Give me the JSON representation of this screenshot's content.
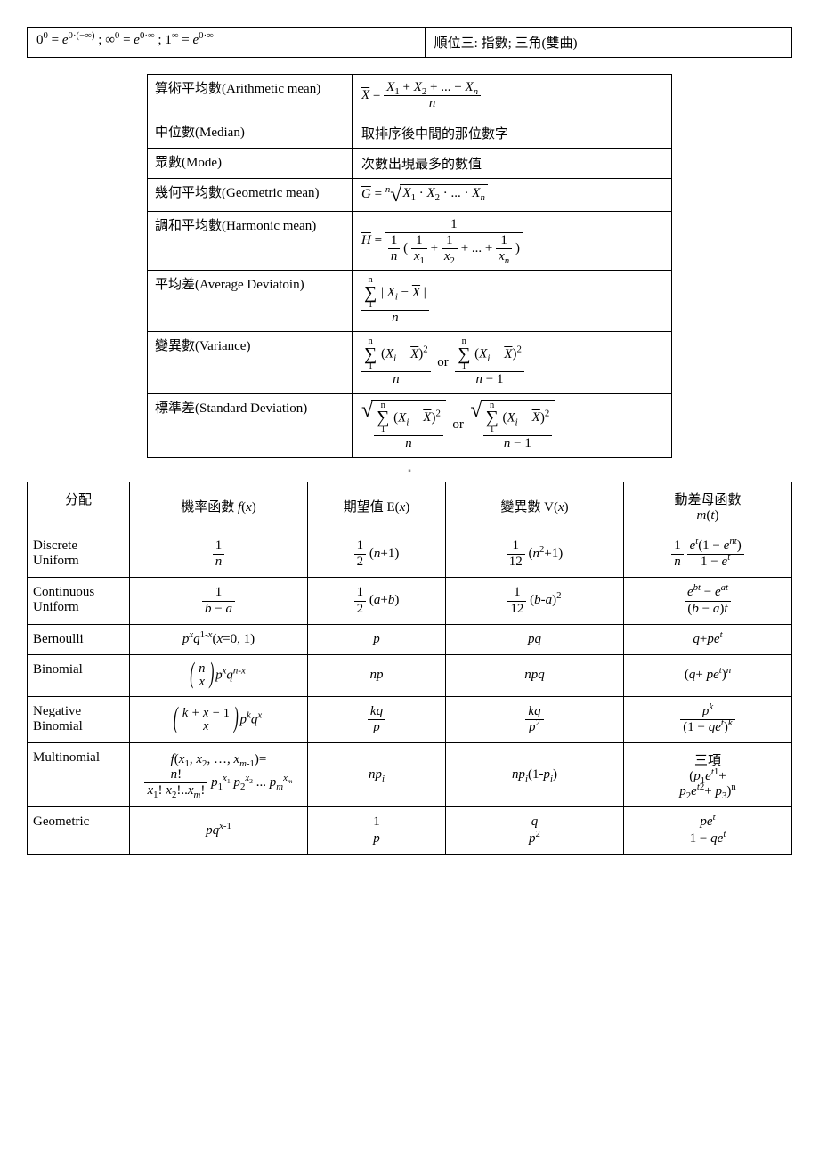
{
  "topRow": {
    "leftHtml": "0<sup>0</sup> = <span class='it'>e</span><sup>0·(−∞)</sup> ; ∞<sup>0</sup> = <span class='it'>e</span><sup>0·∞</sup> ; 1<sup>∞</sup> = <span class='it'>e</span><sup>0·∞</sup>",
    "right": "順位三: 指數; 三角(雙曲)"
  },
  "statRows": [
    {
      "label": "算術平均數(Arithmetic mean)",
      "formulaHtml": "<span class='ol it'>X</span> = <span class='frac'><span class='num'><span class='it'>X</span><sub>1</sub> + <span class='it'>X</span><sub>2</sub> + ... + <span class='it'>X</span><sub><span class='it'>n</span></sub></span><span class='den it'>n</span></span>"
    },
    {
      "label": "中位數(Median)",
      "formulaHtml": "取排序後中間的那位數字"
    },
    {
      "label": "眾數(Mode)",
      "formulaHtml": "次數出現最多的數值"
    },
    {
      "label": "幾何平均數(Geometric mean)",
      "formulaHtml": "<span class='ol it'>G</span> = <sup><span class='it'>n</span></sup><span class='sqrt'><span class='rad'>√</span><span class='body'><span class='it'>X</span><sub>1</sub> · <span class='it'>X</span><sub>2</sub> · ... · <span class='it'>X</span><sub><span class='it'>n</span></sub></span></span>"
    },
    {
      "label": "調和平均數(Harmonic mean)",
      "formulaHtml": "<span class='ol it'>H</span> = <span class='frac'><span class='num'>1</span><span class='den'><span class='frac'><span class='num'>1</span><span class='den it'>n</span></span> ( <span class='frac'><span class='num'>1</span><span class='den'><span class='it'>x</span><sub>1</sub></span></span> + <span class='frac'><span class='num'>1</span><span class='den'><span class='it'>x</span><sub>2</sub></span></span> + ... + <span class='frac'><span class='num'>1</span><span class='den'><span class='it'>x</span><sub><span class='it'>n</span></sub></span></span> )</span></span>"
    },
    {
      "label": "平均差(Average Deviatoin)",
      "formulaHtml": "<span class='frac'><span class='num'><span class='sum'><span>n</span><span class='sig'>∑</span><span>1</span></span> | <span class='it'>X</span><sub><span class='it'>i</span></sub> − <span class='ol it'>X</span> |</span><span class='den it'>n</span></span>"
    },
    {
      "label": "變異數(Variance)",
      "formulaHtml": "<span class='frac'><span class='num'><span class='sum'><span>n</span><span class='sig'>∑</span><span>1</span></span> (<span class='it'>X</span><sub><span class='it'>i</span></sub> − <span class='ol it'>X</span>)<sup>2</sup></span><span class='den it'>n</span></span> &nbsp;or&nbsp; <span class='frac'><span class='num'><span class='sum'><span>n</span><span class='sig'>∑</span><span>1</span></span> (<span class='it'>X</span><sub><span class='it'>i</span></sub> − <span class='ol it'>X</span>)<sup>2</sup></span><span class='den'><span class='it'>n</span> − 1</span></span>"
    },
    {
      "label": "標準差(Standard Deviation)",
      "formulaHtml": "<span class='sqrt'><span class='rad'>√</span><span class='body'><span class='frac'><span class='num'><span class='sum'><span>n</span><span class='sig'>∑</span><span>1</span></span> (<span class='it'>X</span><sub><span class='it'>i</span></sub> − <span class='ol it'>X</span>)<sup>2</sup></span><span class='den it'>n</span></span></span></span> &nbsp;or&nbsp; <span class='sqrt'><span class='rad'>√</span><span class='body'><span class='frac'><span class='num'><span class='sum'><span>n</span><span class='sig'>∑</span><span>1</span></span> (<span class='it'>X</span><sub><span class='it'>i</span></sub> − <span class='ol it'>X</span>)<sup>2</sup></span><span class='den'><span class='it'>n</span> − 1</span></span></span></span>"
    }
  ],
  "midMarker": "▪",
  "distHeader": {
    "c1": "分配",
    "c2Html": "機率函數 <span class='it'>f</span>(<span class='it'>x</span>)",
    "c3Html": "期望值 E(<span class='it'>x</span>)",
    "c4Html": "變異數 V(<span class='it'>x</span>)",
    "c5Html": "動差母函數<br><span class='it'>m</span>(<span class='it'>t</span>)"
  },
  "distRows": [
    {
      "name": "Discrete<br>Uniform",
      "fx": "<span class='frac'><span class='num'>1</span><span class='den it'>n</span></span>",
      "ex": "<span class='frac'><span class='num'>1</span><span class='den'>2</span></span> (<span class='it'>n</span>+1)",
      "vx": "<span class='frac'><span class='num'>1</span><span class='den'>12</span></span> (<span class='it'>n</span><sup>2</sup>+1)",
      "mt": "<span class='frac'><span class='num'>1</span><span class='den it'>n</span></span> <span class='frac'><span class='num'><span class='it'>e</span><sup><span class='it'>t</span></sup>(1 − <span class='it'>e</span><sup><span class='it'>nt</span></sup>)</span><span class='den'>1 − <span class='it'>e</span><sup><span class='it'>t</span></sup></span></span>"
    },
    {
      "name": "Continuous<br>Uniform",
      "fx": "<span class='frac'><span class='num'>1</span><span class='den'><span class='it'>b</span> − <span class='it'>a</span></span></span>",
      "ex": "<span class='frac'><span class='num'>1</span><span class='den'>2</span></span> (<span class='it'>a</span>+<span class='it'>b</span>)",
      "vx": "<span class='frac'><span class='num'>1</span><span class='den'>12</span></span> (<span class='it'>b</span>-<span class='it'>a</span>)<sup>2</sup>",
      "mt": "<span class='frac'><span class='num'><span class='it'>e</span><sup><span class='it'>bt</span></sup> − <span class='it'>e</span><sup><span class='it'>at</span></sup></span><span class='den'>(<span class='it'>b</span> − <span class='it'>a</span>)<span class='it'>t</span></span></span>"
    },
    {
      "name": "Bernoulli",
      "fx": "<span class='it'>p</span><sup><span class='it'>x</span></sup><span class='it'>q</span><sup>1-<span class='it'>x</span></sup>(<span class='it'>x</span>=0, 1)",
      "ex": "<span class='it'>p</span>",
      "vx": "<span class='it'>pq</span>",
      "mt": "<span class='it'>q</span>+<span class='it'>pe</span><sup><span class='it'>t</span></sup>"
    },
    {
      "name": "Binomial",
      "fx": "<span class='binom'><span>n</span><span>x</span></span> <span class='it'>p</span><sup><span class='it'>x</span></sup><span class='it'>q</span><sup><span class='it'>n</span>-<span class='it'>x</span></sup>",
      "ex": "<span class='it'>np</span>",
      "vx": "<span class='it'>npq</span>",
      "mt": "(<span class='it'>q</span>+ <span class='it'>pe</span><sup><span class='it'>t</span></sup>)<sup><span class='it'>n</span></sup>"
    },
    {
      "name": "Negative<br>Binomial",
      "fx": "<span class='binom'><span>k + x − <span class='plain'>1</span></span><span>x</span></span> <span class='it'>p</span><sup><span class='it'>k</span></sup><span class='it'>q</span><sup><span class='it'>x</span></sup>",
      "ex": "<span class='frac'><span class='num it'>kq</span><span class='den it'>p</span></span>",
      "vx": "<span class='frac'><span class='num it'>kq</span><span class='den'><span class='it'>p</span><sup>2</sup></span></span>",
      "mt": "<span class='frac'><span class='num'><span class='it'>p</span><sup><span class='it'>k</span></sup></span><span class='den'>(1 − <span class='it'>qe</span><sup><span class='it'>t</span></sup>)<sup><span class='it'>k</span></sup></span></span>"
    },
    {
      "name": "Multinomial",
      "fx": "<span class='it'>f</span>(<span class='it'>x</span><sub>1</sub>, <span class='it'>x</span><sub>2</sub>, …, <span class='it'>x</span><sub><span class='it'>m</span>-1</sub>)=<br><span class='frac'><span class='num'><span class='it'>n</span>!</span><span class='den'><span class='it'>x</span><sub>1</sub>! <span class='it'>x</span><sub>2</sub>!..<span class='it'>x</span><sub><span class='it'>m</span></sub>!</span></span> <span class='it'>p</span><sub>1</sub><sup><span class='it'>x</span><sub>1</sub></sup> <span class='it'>p</span><sub>2</sub><sup><span class='it'>x</span><sub>2</sub></sup> ... <span class='it'>p</span><sub><span class='it'>m</span></sub><sup><span class='it'>x</span><sub><span class='it'>m</span></sub></sup>",
      "ex": "<span class='it'>np</span><sub><span class='it'>i</span></sub>",
      "vx": "<span class='it'>np</span><sub><span class='it'>i</span></sub>(1-<span class='it'>p</span><sub><span class='it'>i</span></sub>)",
      "mt": "三項<br>(<span class='it'>p</span><sub>1</sub><span class='it'>e</span><sup><span class='it'>t</span>1</sup>+<br><span class='it'>p</span><sub>2</sub><span class='it'>e</span><sup><span class='it'>t</span>2</sup>+ <span class='it'>p</span><sub>3</sub>)<sup>n</sup>"
    },
    {
      "name": "Geometric",
      "fx": "<span class='it'>pq</span><sup><span class='it'>x</span>-1</sup>",
      "ex": "<span class='frac'><span class='num'>1</span><span class='den it'>p</span></span>",
      "vx": "<span class='frac'><span class='num it'>q</span><span class='den'><span class='it'>p</span><sup>2</sup></span></span>",
      "mt": "<span class='frac'><span class='num'><span class='it'>pe</span><sup><span class='it'>t</span></sup></span><span class='den'>1 − <span class='it'>qe</span><sup><span class='it'>t</span></sup></span></span>"
    }
  ],
  "styling": {
    "pageWidthPx": 920,
    "pageHeightPx": 1302,
    "bg": "#ffffff",
    "fg": "#000000",
    "border": "#000000",
    "bodyFont": "Times New Roman / PMingLiU",
    "bodyFontSizePx": 15,
    "statTableWidthPx": 590,
    "statLabelColWidthPx": 230,
    "distColWidthsPx": [
      115,
      200,
      155,
      200,
      null
    ],
    "topRowLeftRightSplit": "≈52% / 48%"
  }
}
